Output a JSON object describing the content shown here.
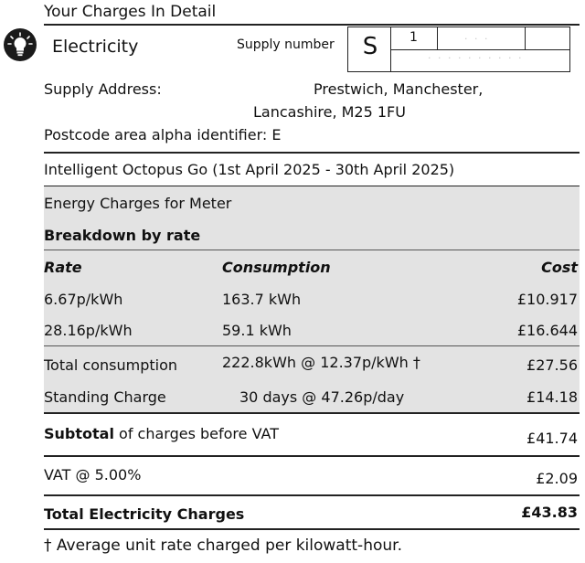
{
  "header": {
    "title": "Your Charges In Detail"
  },
  "meter": {
    "icon": "lightbulb-icon",
    "fuel": "Electricity",
    "supply_number_label": "Supply number",
    "supply_letter": "S",
    "top_digit": "1"
  },
  "address": {
    "label": "Supply Address:",
    "line1": "Prestwich, Manchester,",
    "line2": "Lancashire, M25 1FU",
    "postcode_area": "Postcode area alpha identifier: E"
  },
  "tariff": {
    "name": "Intelligent Octopus Go (1st April 2025 - 30th April 2025)"
  },
  "energy": {
    "heading": "Energy Charges for Meter",
    "breakdown": "Breakdown by rate",
    "columns": {
      "rate": "Rate",
      "consumption": "Consumption",
      "cost": "Cost"
    },
    "rows": [
      {
        "rate": "6.67p/kWh",
        "consumption": "163.7 kWh",
        "cost": "£10.917"
      },
      {
        "rate": "28.16p/kWh",
        "consumption": "59.1 kWh",
        "cost": "£16.644"
      }
    ],
    "total_label": "Total consumption",
    "total_consumption": "222.8kWh @ 12.37p/kWh †",
    "total_cost": "£27.56",
    "standing_label": "Standing Charge",
    "standing_detail": "30 days @ 47.26p/day",
    "standing_cost": "£14.18"
  },
  "subtotal": {
    "bold": "Subtotal",
    "rest": " of charges before VAT",
    "amount": "£41.74"
  },
  "vat": {
    "label": "VAT @ 5.00%",
    "amount": "£2.09"
  },
  "total": {
    "label": "Total Electricity Charges",
    "amount": "£43.83"
  },
  "footnote": "† Average unit rate charged per kilowatt-hour.",
  "colors": {
    "shade": "#e3e3e3",
    "rule": "#222222",
    "icon_bg": "#1a1a1a"
  }
}
